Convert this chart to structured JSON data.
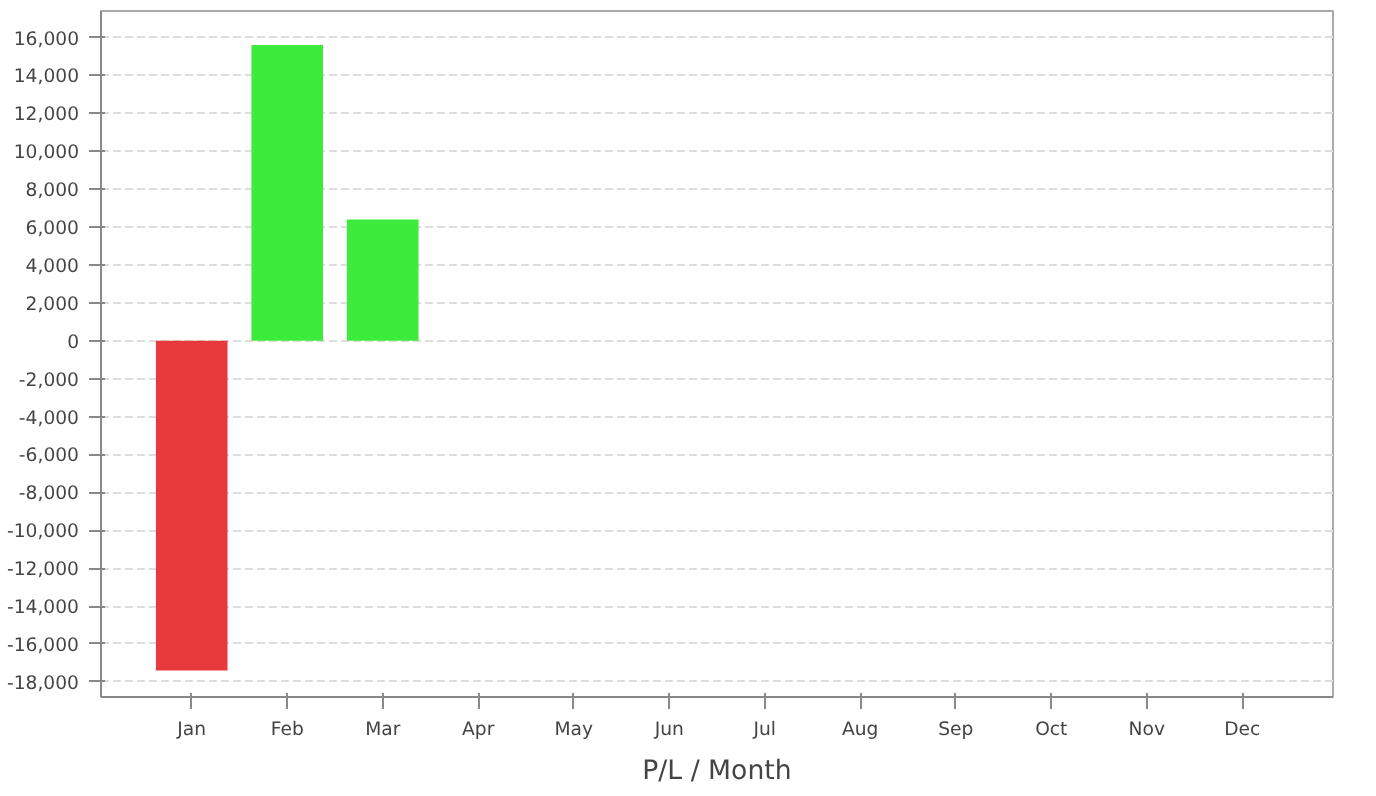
{
  "chart_data": {
    "type": "bar",
    "xlabel": "P/L / Month",
    "categories": [
      "Jan",
      "Feb",
      "Mar",
      "Apr",
      "May",
      "Jun",
      "Jul",
      "Aug",
      "Sep",
      "Oct",
      "Nov",
      "Dec"
    ],
    "values": [
      -17400,
      15600,
      6400,
      null,
      null,
      null,
      null,
      null,
      null,
      null,
      null,
      null
    ],
    "colors": [
      "#e8393d",
      "#3deb3d",
      "#3deb3d",
      null,
      null,
      null,
      null,
      null,
      null,
      null,
      null,
      null
    ],
    "ylim": [
      -18800,
      17400
    ],
    "yticks": [
      {
        "value": -18000,
        "label": "-18,000"
      },
      {
        "value": -16000,
        "label": "-16,000"
      },
      {
        "value": -14000,
        "label": "-14,000"
      },
      {
        "value": -12000,
        "label": "-12,000"
      },
      {
        "value": -10000,
        "label": "-10,000"
      },
      {
        "value": -8000,
        "label": "-8,000"
      },
      {
        "value": -6000,
        "label": "-6,000"
      },
      {
        "value": -4000,
        "label": "-4,000"
      },
      {
        "value": -2000,
        "label": "-2,000"
      },
      0,
      {
        "value": 2000,
        "label": "2,000"
      },
      {
        "value": 4000,
        "label": "4,000"
      },
      {
        "value": 6000,
        "label": "6,000"
      },
      {
        "value": 8000,
        "label": "8,000"
      },
      {
        "value": 10000,
        "label": "10,000"
      },
      {
        "value": 12000,
        "label": "12,000"
      },
      {
        "value": 14000,
        "label": "14,000"
      },
      {
        "value": 16000,
        "label": "16,000"
      }
    ],
    "grid": "y"
  }
}
